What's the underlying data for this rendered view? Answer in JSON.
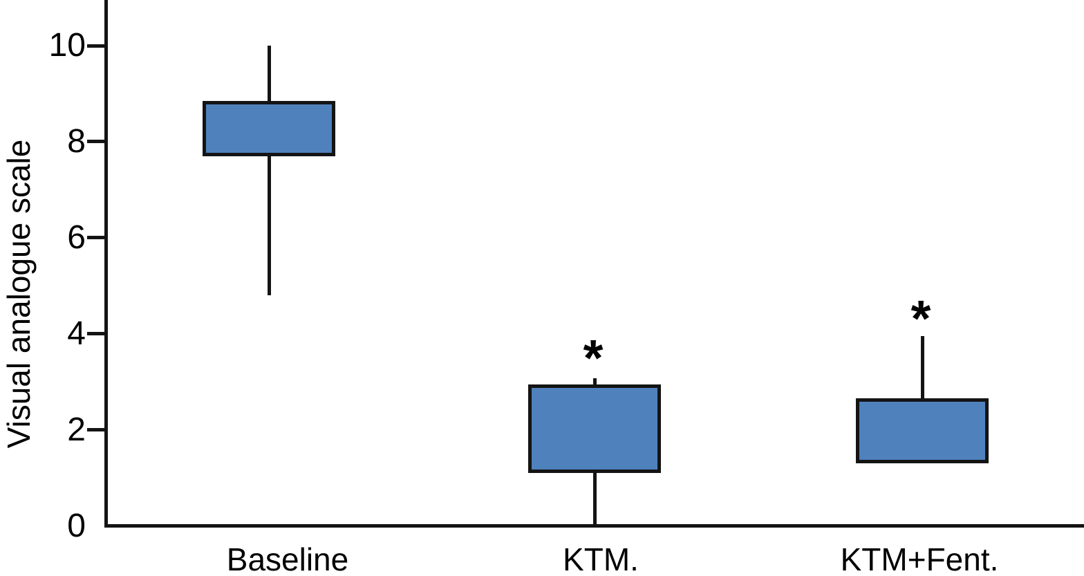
{
  "figure": {
    "background": "#ffffff"
  },
  "chart_data": {
    "type": "boxplot",
    "title": "",
    "xlabel": "",
    "ylabel": "Visual analogue scale",
    "ylim": [
      0,
      10.95
    ],
    "yticks": [
      0,
      2,
      4,
      6,
      8,
      10
    ],
    "categories": [
      "Baseline",
      "KTM.",
      "KTM+Fent."
    ],
    "grid": false,
    "legend": null,
    "colors": {
      "box_fill": "#4f81bd",
      "line": "#141414",
      "text": "#000000"
    },
    "boxes": [
      {
        "category": "Baseline",
        "q1": 7.7,
        "q3": 8.85,
        "median": null,
        "whisker_low": 4.8,
        "whisker_high": 10.0,
        "annotation": null,
        "annotation_y": null
      },
      {
        "category": "KTM.",
        "q1": 1.1,
        "q3": 2.95,
        "median": null,
        "whisker_low": 0,
        "whisker_high": 3.07,
        "annotation": "*",
        "annotation_y": 3.72
      },
      {
        "category": "KTM+Fent.",
        "q1": 1.3,
        "q3": 2.65,
        "median": null,
        "whisker_low": null,
        "whisker_high": 3.95,
        "annotation": "*",
        "annotation_y": 4.54
      }
    ]
  }
}
